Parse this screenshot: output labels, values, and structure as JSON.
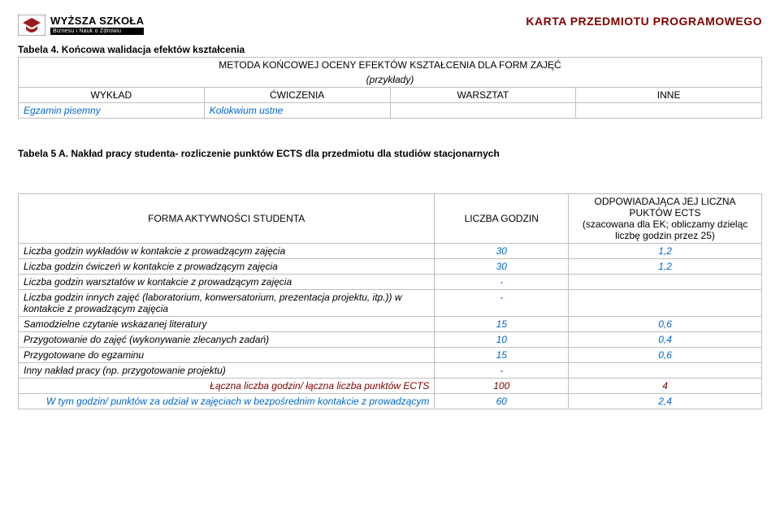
{
  "header": {
    "logo_line1": "WYŻSZA SZKOŁA",
    "logo_line2": "Biznesu i Nauk o Zdrowiu",
    "doc_title": "KARTA PRZEDMIOTU PROGRAMOWEGO",
    "title_color": "#800000"
  },
  "table1": {
    "caption": "Tabela 4. Końcowa walidacja efektów kształcenia",
    "banner_l1": "METODA KOŃCOWEJ OCENY EFEKTÓW KSZTAŁCENIA DLA FORM ZAJĘĆ",
    "banner_l2": "(przykłady)",
    "cols": [
      "WYKŁAD",
      "ĆWICZENIA",
      "WARSZTAT",
      "INNE"
    ],
    "row": [
      "Egzamin pisemny",
      "Kolokwium ustne",
      "",
      ""
    ],
    "row_color": "#0066cc"
  },
  "table2": {
    "caption": "Tabela 5 A. Nakład pracy studenta- rozliczenie punktów ECTS dla przedmiotu dla studiów stacjonarnych",
    "head": {
      "c1": "FORMA AKTYWNOŚCI STUDENTA",
      "c2": "LICZBA GODZIN",
      "c3": "ODPOWIADAJĄCA JEJ LICZNA PUKTÓW ECTS\n(szacowana dla EK; obliczamy dzieląc liczbę godzin przez 25)"
    },
    "rows": [
      {
        "label": "Liczba godzin wykładów w kontakcie z prowadzącym zajęcia",
        "hours": "30",
        "ects": "1,2",
        "ects_color": "#0066cc"
      },
      {
        "label": "Liczba godzin ćwiczeń w kontakcie z prowadzącym zajęcia",
        "hours": "30",
        "ects": "1,2",
        "ects_color": "#0066cc"
      },
      {
        "label": "Liczba godzin warsztatów w kontakcie z prowadzącym zajęcia",
        "hours": "-",
        "ects": ""
      },
      {
        "label": "Liczba godzin innych zajęć (laboratorium, konwersatorium, prezentacja projektu, itp.)) w kontakcie  z prowadzącym zajęcia",
        "hours": "-",
        "ects": ""
      },
      {
        "label": "Samodzielne czytanie wskazanej literatury",
        "hours": "15",
        "ects": "0,6",
        "ects_color": "#0066cc"
      },
      {
        "label": "Przygotowanie do zajęć (wykonywanie zlecanych zadań)",
        "hours": "10",
        "ects": "0,4",
        "ects_color": "#0066cc"
      },
      {
        "label": "Przygotowane do egzaminu",
        "hours": "15",
        "ects": "0,6",
        "ects_color": "#0066cc"
      },
      {
        "label": "Inny nakład pracy (np. przygotowanie projektu)",
        "hours": "-",
        "ects": ""
      }
    ],
    "totals": [
      {
        "label": "Łączna liczba godzin/ łączna liczba punktów ECTS",
        "hours": "100",
        "ects": "4",
        "color": "#800000",
        "align": "right"
      },
      {
        "label": "W tym godzin/ punktów za udział w zajęciach w bezpośrednim kontakcie z prowadzącym",
        "hours": "60",
        "ects": "2,4",
        "color": "#0066cc",
        "align": "right"
      }
    ]
  }
}
